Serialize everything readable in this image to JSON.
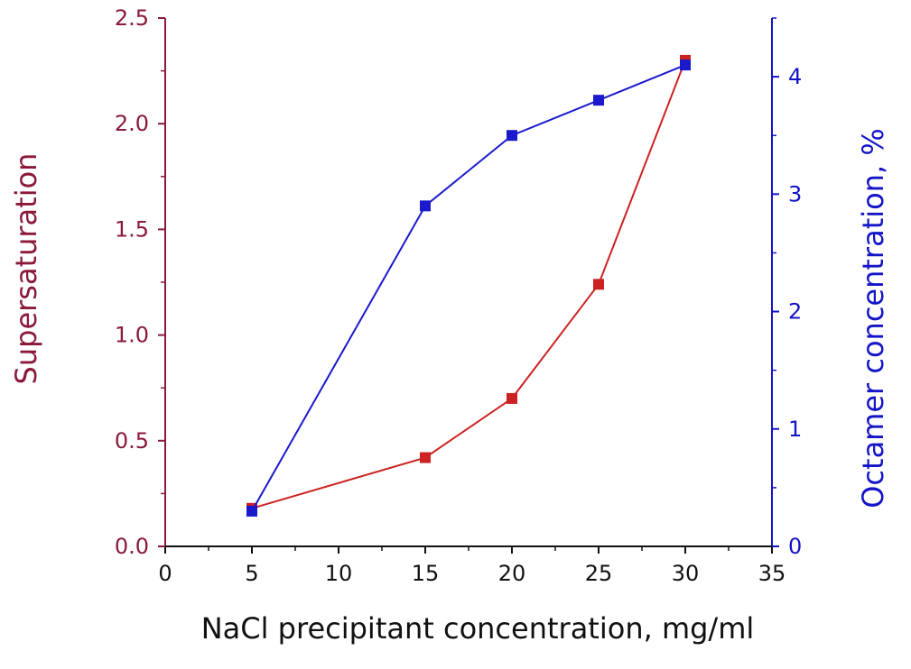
{
  "chart_data": {
    "type": "line",
    "xlabel": "NaCl precipitant concentration, mg/ml",
    "ylabel_left": "Supersaturation",
    "ylabel_right": "Octamer concentration, %",
    "xlim": [
      0,
      35
    ],
    "ylim_left": [
      0,
      2.5
    ],
    "ylim_right": [
      0,
      4.5
    ],
    "x_ticks": [
      "0",
      "5",
      "10",
      "15",
      "20",
      "25",
      "30",
      "35"
    ],
    "y_left_ticks": [
      "0.0",
      "0.5",
      "1.0",
      "1.5",
      "2.0",
      "2.5"
    ],
    "y_right_ticks": [
      "0",
      "1",
      "2",
      "3",
      "4"
    ],
    "grid": false,
    "colors": {
      "left_axis": "#8b1a3a",
      "right_axis": "#1414c8",
      "red_series": "#cc2222",
      "blue_series": "#1a1acc"
    },
    "series": [
      {
        "axis": "left",
        "x": [
          5,
          15,
          20,
          25,
          30
        ],
        "values": [
          0.18,
          0.42,
          0.7,
          1.24,
          2.3
        ]
      },
      {
        "axis": "right",
        "x": [
          5,
          15,
          20,
          25,
          30
        ],
        "values": [
          0.3,
          2.9,
          3.5,
          3.8,
          4.1
        ]
      }
    ]
  }
}
